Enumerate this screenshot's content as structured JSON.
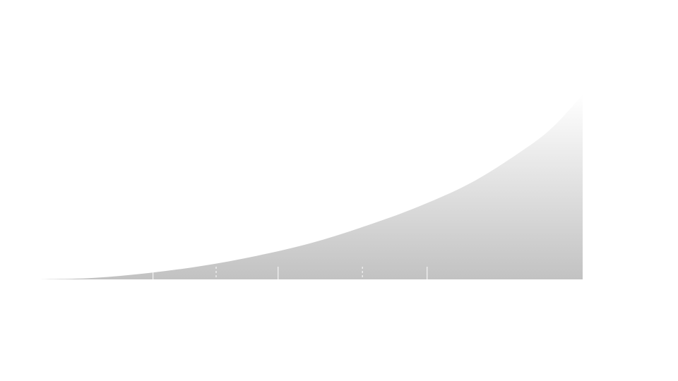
{
  "chart_data": {
    "type": "area",
    "title": "",
    "xlabel": "",
    "ylabel": "",
    "grid": false,
    "legend": "none",
    "xlim": [
      0,
      100
    ],
    "ylim": [
      0,
      100
    ],
    "series": [
      {
        "values": [
          {
            "x": 0,
            "y": 0
          },
          {
            "x": 10,
            "y": 0.8
          },
          {
            "x": 20,
            "y": 3.4
          },
          {
            "x": 30,
            "y": 7.3
          },
          {
            "x": 40,
            "y": 12.7
          },
          {
            "x": 50,
            "y": 19.6
          },
          {
            "x": 60,
            "y": 28.8
          },
          {
            "x": 70,
            "y": 39.6
          },
          {
            "x": 80,
            "y": 53.1
          },
          {
            "x": 90,
            "y": 71.9
          },
          {
            "x": 95,
            "y": 83.8
          },
          {
            "x": 100,
            "y": 100
          }
        ]
      }
    ],
    "markers": [
      {
        "x": 21,
        "style": "solid"
      },
      {
        "x": 32.6,
        "style": "dashed"
      },
      {
        "x": 44,
        "style": "solid"
      },
      {
        "x": 59.5,
        "style": "dashed"
      },
      {
        "x": 71.4,
        "style": "solid"
      }
    ],
    "colors": {
      "fill_top": "#ffffff",
      "fill_bottom": "#c2c2c2",
      "marker": "#ffffff"
    }
  }
}
